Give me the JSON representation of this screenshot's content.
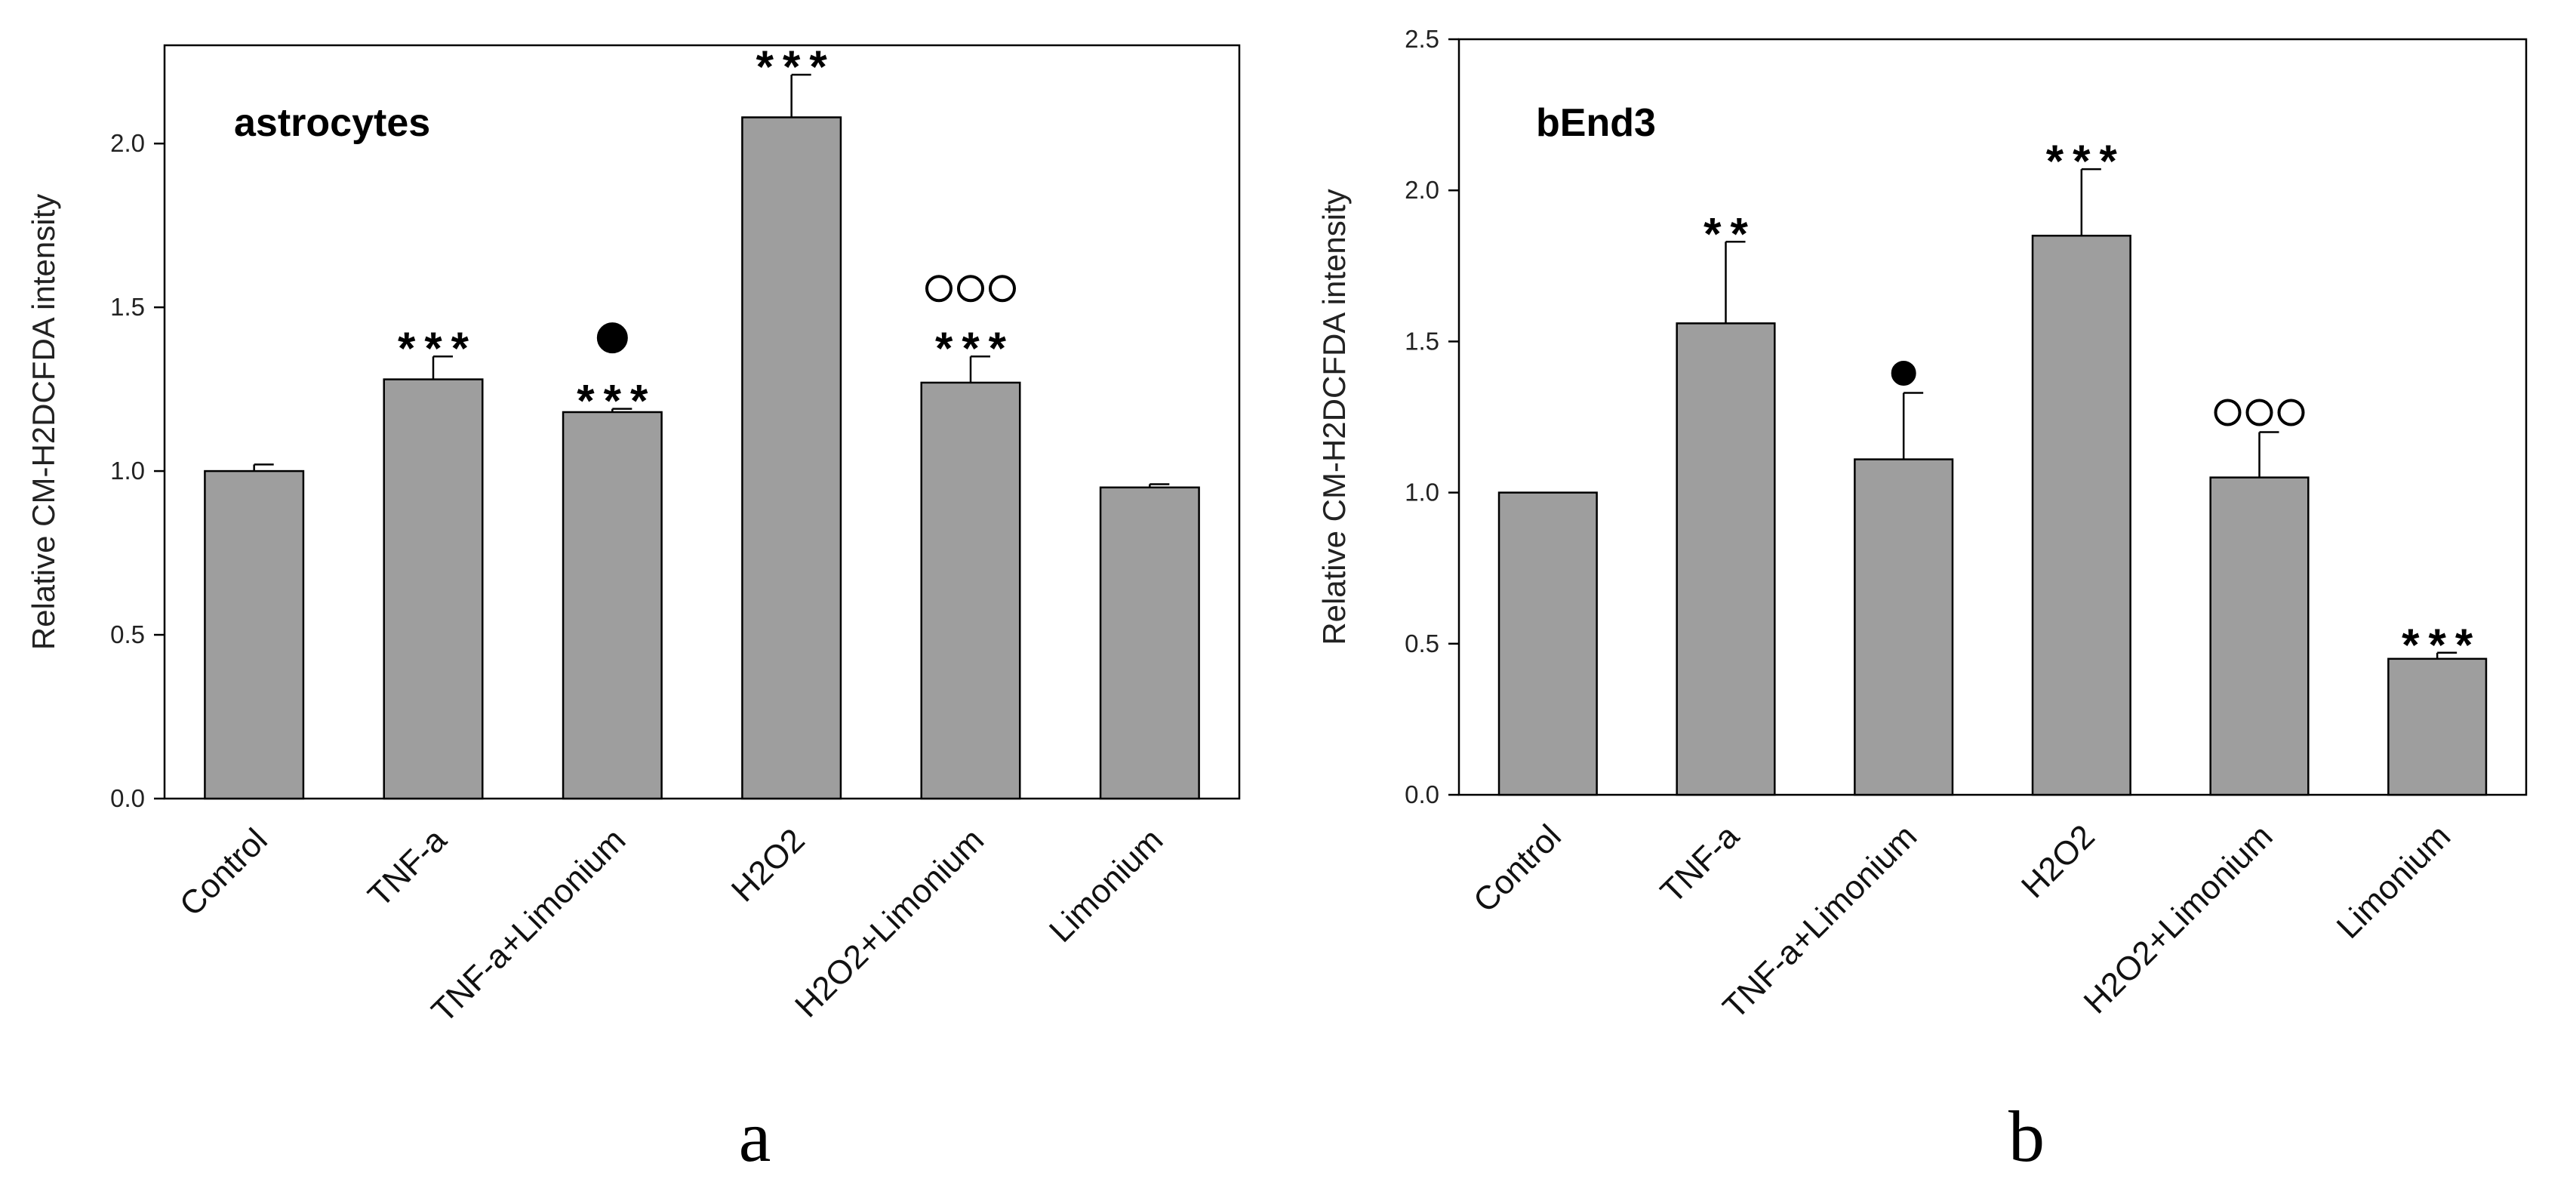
{
  "colors": {
    "bar_fill": "#9e9e9e",
    "bar_stroke": "#000000",
    "axis": "#000000"
  },
  "chart_data": [
    {
      "type": "bar",
      "panel_label": "a",
      "title": "astrocytes",
      "xlabel": "",
      "ylabel": "Relative CM-H2DCFDA intensity",
      "ylim": [
        0,
        2.3
      ],
      "yticks": [
        0.0,
        0.5,
        1.0,
        1.5,
        2.0
      ],
      "ytick_labels": [
        "0.0",
        "0.5",
        "1.0",
        "1.5",
        "2.0"
      ],
      "grid": false,
      "categories": [
        "Control",
        "TNF-a",
        "TNF-a+Limonium",
        "H2O2",
        "H2O2+Limonium",
        "Limonium"
      ],
      "values": [
        1.0,
        1.28,
        1.18,
        2.08,
        1.27,
        0.95
      ],
      "errors": [
        0.02,
        0.07,
        0.01,
        0.13,
        0.08,
        0.01
      ],
      "significance": [
        {
          "stars": "",
          "marker": "",
          "marker_count": 0
        },
        {
          "stars": "***",
          "marker": "",
          "marker_count": 0
        },
        {
          "stars": "***",
          "marker": "filled-circle",
          "marker_count": 1
        },
        {
          "stars": "***",
          "marker": "",
          "marker_count": 0
        },
        {
          "stars": "***",
          "marker": "open-circle",
          "marker_count": 3
        },
        {
          "stars": "",
          "marker": "",
          "marker_count": 0
        }
      ]
    },
    {
      "type": "bar",
      "panel_label": "b",
      "title": "bEnd3",
      "xlabel": "",
      "ylabel": "Relative CM-H2DCFDA intensity",
      "ylim": [
        0,
        2.5
      ],
      "yticks": [
        0.0,
        0.5,
        1.0,
        1.5,
        2.0,
        2.5
      ],
      "ytick_labels": [
        "0.0",
        "0.5",
        "1.0",
        "1.5",
        "2.0",
        "2.5"
      ],
      "grid": false,
      "categories": [
        "Control",
        "TNF-a",
        "TNF-a+Limonium",
        "H2O2",
        "H2O2+Limonium",
        "Limonium"
      ],
      "values": [
        1.0,
        1.56,
        1.11,
        1.85,
        1.05,
        0.45
      ],
      "errors": [
        0.0,
        0.27,
        0.22,
        0.22,
        0.15,
        0.02
      ],
      "significance": [
        {
          "stars": "",
          "marker": "",
          "marker_count": 0
        },
        {
          "stars": "**",
          "marker": "",
          "marker_count": 0
        },
        {
          "stars": "",
          "marker": "filled-circle",
          "marker_count": 1
        },
        {
          "stars": "***",
          "marker": "",
          "marker_count": 0
        },
        {
          "stars": "",
          "marker": "open-circle",
          "marker_count": 3
        },
        {
          "stars": "***",
          "marker": "",
          "marker_count": 0
        }
      ]
    }
  ]
}
